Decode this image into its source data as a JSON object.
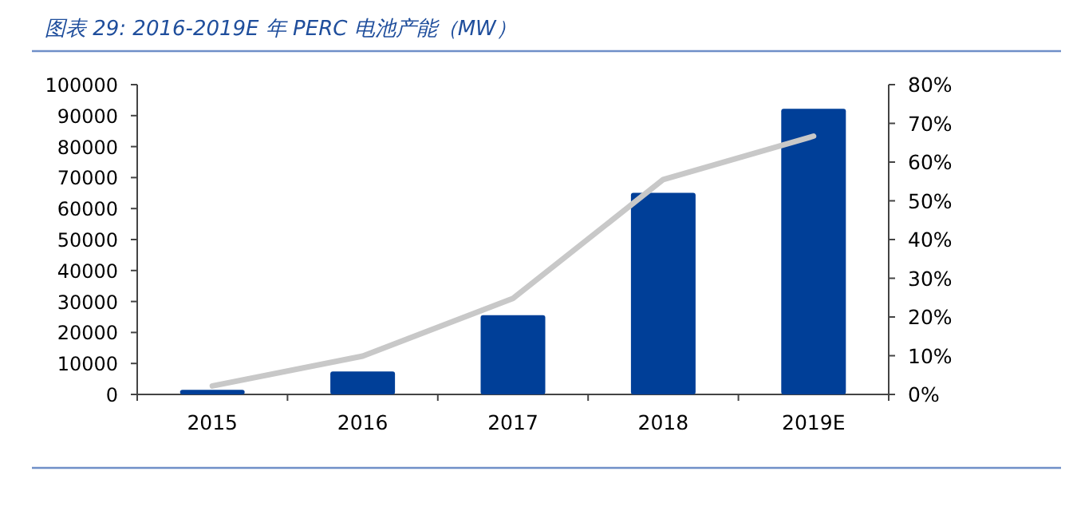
{
  "chart_data": {
    "type": "bar",
    "title": "图表 29:  2016-2019E 年 PERC 电池产能（MW）",
    "categories": [
      "2015",
      "2016",
      "2017",
      "2018",
      "2019E"
    ],
    "series": [
      {
        "color": "#003f98",
        "values": [
          1500,
          7400,
          25600,
          65100,
          92200
        ]
      },
      {
        "type": "line",
        "axis": "y2",
        "color": "#c8c8c8",
        "values": [
          2.2,
          9.9,
          24.8,
          55.5,
          66.7
        ]
      }
    ],
    "ylim": [
      0,
      100000
    ],
    "yticks": [
      0,
      10000,
      20000,
      30000,
      40000,
      50000,
      60000,
      70000,
      80000,
      90000,
      100000
    ],
    "y2lim": [
      0,
      80
    ],
    "y2ticks": [
      {
        "value": 0,
        "label": "0%"
      },
      {
        "value": 10,
        "label": "10%"
      },
      {
        "value": 20,
        "label": "20%"
      },
      {
        "value": 30,
        "label": "30%"
      },
      {
        "value": 40,
        "label": "40%"
      },
      {
        "value": 50,
        "label": "50%"
      },
      {
        "value": 60,
        "label": "60%"
      },
      {
        "value": 70,
        "label": "70%"
      },
      {
        "value": 80,
        "label": "80%"
      }
    ],
    "grid": false
  }
}
